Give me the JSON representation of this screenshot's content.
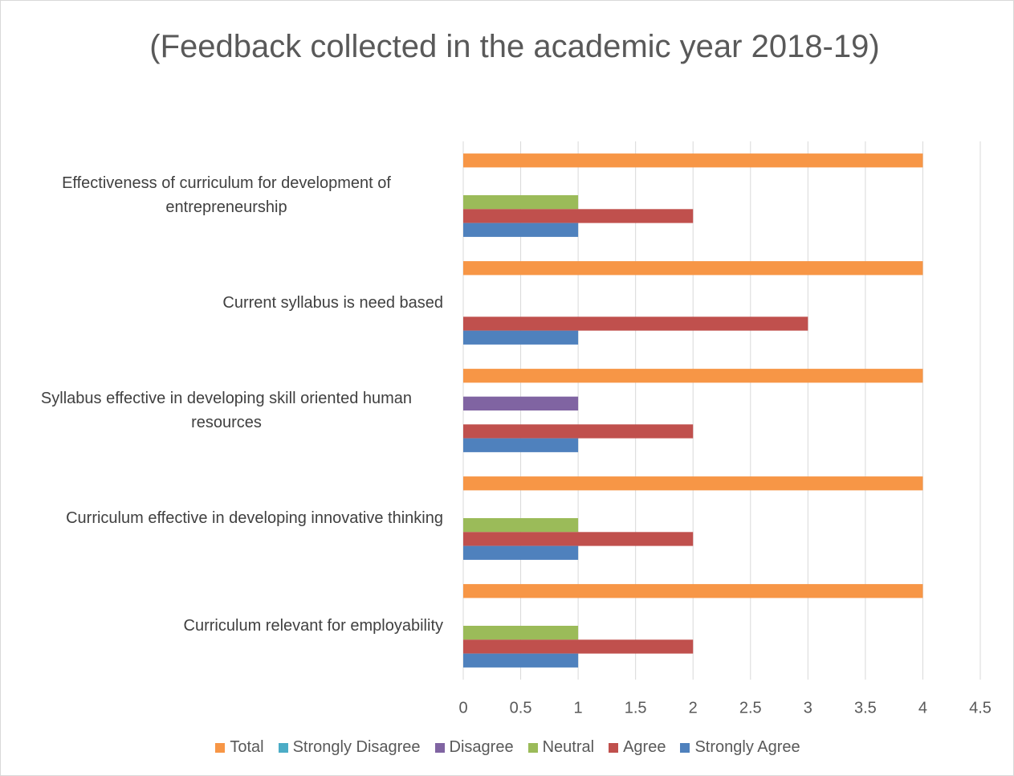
{
  "chart_data": {
    "type": "bar",
    "orientation": "horizontal",
    "title": "(Feedback collected in the academic year 2018-19)",
    "categories": [
      "Effectiveness of curriculum for development of entrepreneurship",
      "Current syllabus is need based",
      "Syllabus effective in developing skill oriented human resources",
      "Curriculum effective in developing innovative thinking",
      "Curriculum relevant for employability"
    ],
    "series": [
      {
        "name": "Total",
        "color": "#f79646",
        "values": [
          4,
          4,
          4,
          4,
          4
        ]
      },
      {
        "name": "Strongly Disagree",
        "color": "#4bacc6",
        "values": [
          0,
          0,
          0,
          0,
          0
        ]
      },
      {
        "name": "Disagree",
        "color": "#8064a2",
        "values": [
          0,
          0,
          1,
          0,
          0
        ]
      },
      {
        "name": "Neutral",
        "color": "#9bbb59",
        "values": [
          1,
          0,
          0,
          1,
          1
        ]
      },
      {
        "name": "Agree",
        "color": "#c0504d",
        "values": [
          2,
          3,
          2,
          2,
          2
        ]
      },
      {
        "name": "Strongly Agree",
        "color": "#4f81bd",
        "values": [
          1,
          1,
          1,
          1,
          1
        ]
      }
    ],
    "xlim": [
      0,
      4.5
    ],
    "xticks": [
      0,
      0.5,
      1,
      1.5,
      2,
      2.5,
      3,
      3.5,
      4,
      4.5
    ],
    "grid": true,
    "legend": "bottom"
  }
}
